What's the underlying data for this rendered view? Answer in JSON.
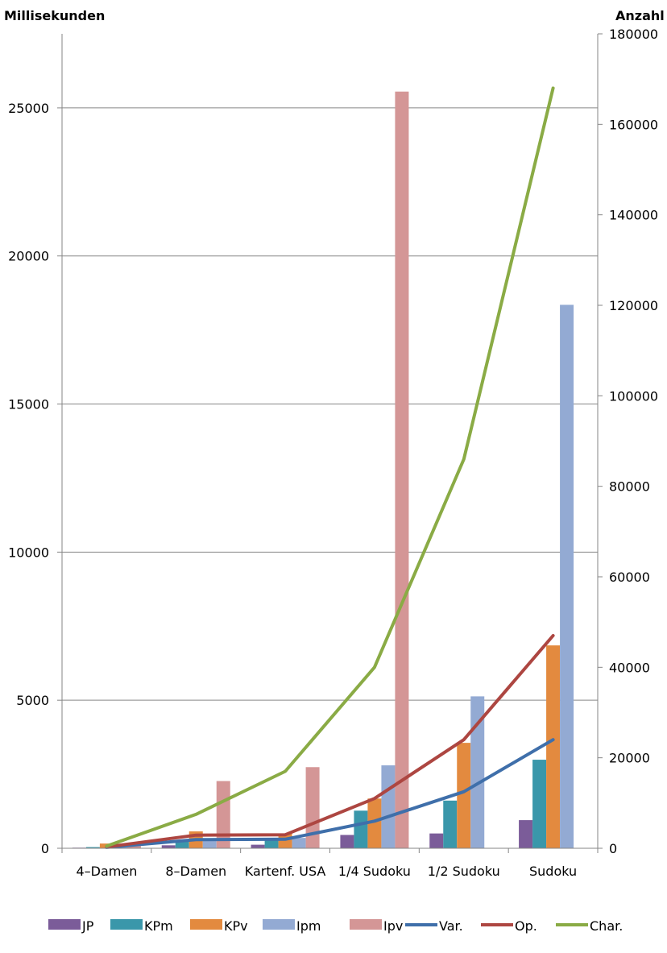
{
  "chart_data": {
    "type": "bar",
    "title": "",
    "y_left_label": "Millisekunden",
    "y_right_label": "Anzahl",
    "categories": [
      "4–Damen",
      "8–Damen",
      "Kartenf. USA",
      "1/4 Sudoku",
      "1/2 Sudoku",
      "Sudoku"
    ],
    "ylim_left": [
      0,
      27500
    ],
    "ylim_right": [
      0,
      180000
    ],
    "y_left_ticks": [
      0,
      5000,
      10000,
      15000,
      20000,
      25000
    ],
    "y_right_ticks": [
      0,
      20000,
      40000,
      60000,
      80000,
      100000,
      120000,
      140000,
      160000,
      180000
    ],
    "grid": true,
    "legend_position": "bottom",
    "bar_series": [
      {
        "name": "JP",
        "color": "#7b5c99",
        "values": [
          20,
          100,
          120,
          450,
          500,
          950
        ]
      },
      {
        "name": "KPm",
        "color": "#3a97aa",
        "values": [
          40,
          280,
          280,
          1270,
          1610,
          2990
        ]
      },
      {
        "name": "KPv",
        "color": "#e38a3f",
        "values": [
          160,
          570,
          500,
          1680,
          3560,
          6850
        ]
      },
      {
        "name": "Ipm",
        "color": "#93aad3",
        "values": [
          60,
          320,
          350,
          2800,
          5130,
          18350
        ]
      },
      {
        "name": "Ipv",
        "color": "#d49696",
        "values": [
          80,
          2270,
          2740,
          25550,
          0,
          0
        ]
      }
    ],
    "line_series": [
      {
        "name": "Var.",
        "color": "#3f6faa",
        "axis": "right",
        "values": [
          200,
          1900,
          2000,
          6000,
          12500,
          24000
        ]
      },
      {
        "name": "Op.",
        "color": "#ad4641",
        "axis": "right",
        "values": [
          300,
          2900,
          3000,
          11000,
          24000,
          47000
        ]
      },
      {
        "name": "Char.",
        "color": "#8aab45",
        "axis": "right",
        "values": [
          500,
          7500,
          17000,
          40000,
          86000,
          168000
        ]
      }
    ]
  }
}
